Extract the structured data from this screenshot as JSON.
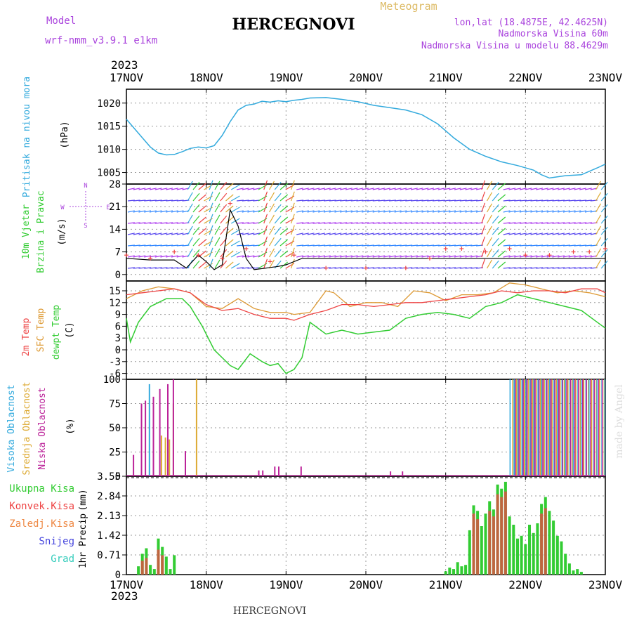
{
  "header": {
    "model_label": "Model",
    "model_name": "wrf-nmm_v3.9.1 e1km",
    "title": "HERCEGNOVI",
    "subtitle": "Meteogram",
    "lonlat": "lon,lat (18.4875E, 42.4625N)",
    "elevation": "Nadmorska Visina 60m",
    "model_elevation": "Nadmorska Visina u modelu 88.4629m",
    "watermark": "made by Angel",
    "footer_title": "HERCEGNOVI"
  },
  "time_axis": {
    "year": "2023",
    "ticks": [
      "17NOV",
      "18NOV",
      "19NOV",
      "20NOV",
      "21NOV",
      "22NOV",
      "23NOV"
    ]
  },
  "colors": {
    "pressure": "#33aadd",
    "temp2m": "#ee4444",
    "sfc_temp": "#dd9933",
    "dewpoint": "#33cc33",
    "high_cloud": "#33aadd",
    "mid_cloud": "#ddaa33",
    "low_cloud": "#bb2299",
    "total_precip": "#33cc33",
    "conv_precip": "#ee4444",
    "snow": "#4444dd",
    "wind_label": "#33cc33",
    "wind_speed_line": "#000000",
    "gust": "#ee4444"
  },
  "chart_data": [
    {
      "type": "line",
      "panel": "pressure",
      "ylabel_lines": [
        "Pritisak na nivou mora"
      ],
      "unit": "(hPa)",
      "yticks": [
        "1020",
        "1015",
        "1010",
        "1005"
      ],
      "ylim": [
        1002.5,
        1023
      ],
      "x_unit": "days since 17NOV 00UTC",
      "series": [
        {
          "x": [
            0,
            0.1,
            0.2,
            0.3,
            0.4,
            0.5,
            0.6,
            0.7,
            0.8,
            0.9,
            1.0,
            1.1,
            1.2,
            1.3,
            1.4,
            1.5,
            1.6,
            1.7,
            1.8,
            1.9,
            2.0,
            2.1,
            2.2,
            2.3,
            2.5,
            2.7,
            2.9,
            3.1,
            3.3,
            3.5,
            3.7,
            3.9,
            4.1,
            4.3,
            4.5,
            4.7,
            4.9,
            5.1,
            5.2,
            5.3,
            5.5,
            5.7,
            5.9,
            6.0
          ],
          "values": [
            1016.5,
            1014.5,
            1012.5,
            1010.5,
            1009.2,
            1008.8,
            1008.9,
            1009.5,
            1010.2,
            1010.5,
            1010.3,
            1010.8,
            1013.0,
            1016.0,
            1018.5,
            1019.5,
            1019.8,
            1020.4,
            1020.2,
            1020.5,
            1020.3,
            1020.6,
            1020.8,
            1021.1,
            1021.2,
            1020.8,
            1020.3,
            1019.5,
            1019.0,
            1018.5,
            1017.5,
            1015.5,
            1012.5,
            1010.0,
            1008.5,
            1007.3,
            1006.5,
            1005.5,
            1004.5,
            1003.8,
            1004.3,
            1004.5,
            1006.0,
            1006.8
          ]
        }
      ]
    },
    {
      "type": "line",
      "panel": "wind",
      "ylabel_lines": [
        "10m Vjetar",
        "Brzina i Pravac"
      ],
      "unit": "(m/s)",
      "compass": [
        "N",
        "S",
        "E",
        "W"
      ],
      "yticks": [
        "28",
        "21",
        "14",
        "7",
        "0"
      ],
      "ylim": [
        -2,
        28
      ],
      "series": [
        {
          "name": "speed",
          "x": [
            0,
            0.3,
            0.6,
            0.75,
            0.9,
            1.0,
            1.1,
            1.2,
            1.3,
            1.4,
            1.5,
            1.6,
            1.75,
            1.9,
            2.0,
            2.2,
            2.5,
            2.8,
            3.0,
            3.3,
            3.6,
            3.8,
            4.0,
            4.2,
            4.4,
            4.6,
            4.8,
            5.0,
            5.2,
            5.4,
            5.6,
            5.8,
            6.0
          ],
          "values": [
            5,
            4.5,
            4.5,
            2,
            6,
            4,
            1.5,
            3,
            20,
            15,
            5,
            1.5,
            2,
            2.5,
            3,
            5,
            5,
            5,
            5,
            5,
            5,
            5,
            5,
            5,
            5,
            5,
            5,
            5,
            5,
            5,
            5,
            5,
            5
          ]
        },
        {
          "name": "gust",
          "x": [
            0,
            0.3,
            0.6,
            0.9,
            1.2,
            1.3,
            1.5,
            1.8,
            2.1,
            2.5,
            3.0,
            3.5,
            3.8,
            4.0,
            4.2,
            4.5,
            4.8,
            5.0,
            5.3,
            5.6,
            5.8,
            6.0
          ],
          "values": [
            6,
            5,
            7,
            6,
            5,
            22,
            8,
            4,
            6,
            2,
            2,
            2,
            5,
            8,
            8,
            7,
            8,
            6,
            6,
            7,
            7,
            8
          ]
        }
      ]
    },
    {
      "type": "line",
      "panel": "temperature",
      "ylabel_lines": [
        "2m Temp",
        "SFC Temp",
        "dewpt Temp"
      ],
      "unit": "(C)",
      "yticks": [
        "15",
        "12",
        "9",
        "6",
        "3",
        "0",
        "-3",
        "-6"
      ],
      "ylim": [
        -7.5,
        17.5
      ],
      "series": [
        {
          "name": "2m Temp",
          "x": [
            0,
            0.2,
            0.4,
            0.6,
            0.8,
            1.0,
            1.2,
            1.4,
            1.6,
            1.8,
            2.0,
            2.1,
            2.3,
            2.5,
            2.7,
            2.9,
            3.1,
            3.3,
            3.5,
            3.7,
            3.9,
            4.1,
            4.3,
            4.5,
            4.7,
            4.9,
            5.1,
            5.3,
            5.5,
            5.7,
            5.9,
            6.0
          ],
          "values": [
            14,
            14.5,
            15,
            15.5,
            14.5,
            11.5,
            10,
            10.5,
            9,
            8,
            8,
            7.5,
            9,
            10,
            11.5,
            11.5,
            11,
            11.5,
            12,
            12,
            12.5,
            13,
            13.5,
            14,
            15,
            14.5,
            15,
            15,
            14.5,
            15.5,
            15.5,
            14.5
          ]
        },
        {
          "name": "SFC Temp",
          "x": [
            0,
            0.2,
            0.4,
            0.6,
            0.8,
            1.0,
            1.2,
            1.4,
            1.6,
            1.8,
            2.0,
            2.1,
            2.3,
            2.5,
            2.6,
            2.8,
            3.0,
            3.2,
            3.4,
            3.6,
            3.8,
            4.0,
            4.2,
            4.4,
            4.6,
            4.8,
            5.0,
            5.2,
            5.4,
            5.6,
            5.8,
            6.0
          ],
          "values": [
            13,
            15,
            16,
            15.5,
            14.5,
            11,
            10.5,
            13,
            10.5,
            9.5,
            9.5,
            9,
            9.5,
            15,
            14.5,
            11,
            12,
            12,
            11,
            15,
            14.5,
            12.5,
            14,
            14,
            14.5,
            17,
            16.5,
            15.5,
            14.5,
            15,
            14.5,
            13.5
          ]
        },
        {
          "name": "dewpt Temp",
          "x": [
            0,
            0.05,
            0.15,
            0.3,
            0.5,
            0.7,
            0.8,
            0.95,
            1.1,
            1.3,
            1.4,
            1.55,
            1.7,
            1.8,
            1.9,
            2.0,
            2.1,
            2.2,
            2.3,
            2.5,
            2.7,
            2.9,
            3.1,
            3.3,
            3.5,
            3.7,
            3.9,
            4.1,
            4.3,
            4.5,
            4.7,
            4.9,
            5.1,
            5.3,
            5.5,
            5.7,
            5.9,
            6.0
          ],
          "values": [
            8,
            2,
            7,
            11,
            13,
            13,
            11,
            6,
            0,
            -4,
            -5,
            -1,
            -3,
            -4,
            -3.5,
            -6,
            -5,
            -2,
            7,
            4,
            5,
            4,
            4.5,
            5,
            8,
            9,
            9.5,
            9,
            8,
            11,
            12,
            14,
            13,
            12,
            11,
            10,
            7,
            5.5
          ]
        }
      ]
    },
    {
      "type": "bar",
      "panel": "cloud",
      "ylabel_lines": [
        "Visoka Oblacnost",
        "Srednja Oblacnost",
        "Niska Oblacnost"
      ],
      "unit": "(%)",
      "yticks": [
        "100",
        "75",
        "50",
        "25",
        "0"
      ],
      "ylim": [
        0,
        100
      ],
      "series": [
        {
          "name": "Visoka Oblacnost",
          "x": [
            0.28,
            4.85,
            4.95,
            5.05,
            5.15,
            5.25,
            5.35,
            5.45,
            5.55,
            5.65,
            5.75,
            5.85,
            5.95
          ],
          "values": [
            95,
            100,
            100,
            100,
            100,
            100,
            100,
            100,
            100,
            100,
            100,
            100,
            100
          ]
        },
        {
          "name": "Srednja Oblacnost",
          "x": [
            0.43,
            0.48,
            0.53,
            0.58,
            0.87,
            4.88,
            4.98,
            5.08,
            5.18,
            5.28,
            5.38,
            5.48,
            5.58,
            5.68,
            5.78,
            5.88,
            5.98
          ],
          "values": [
            42,
            40,
            38,
            75,
            100,
            100,
            100,
            100,
            100,
            100,
            100,
            100,
            100,
            100,
            100,
            100,
            100
          ]
        },
        {
          "name": "Niska Oblacnost",
          "x": [
            0.08,
            0.18,
            0.23,
            0.33,
            0.41,
            0.51,
            0.58,
            0.73,
            1.65,
            1.7,
            1.85,
            1.9,
            2.18,
            3.3,
            3.45,
            4.91,
            5.01,
            5.11,
            5.21,
            5.31,
            5.41,
            5.51,
            5.61,
            5.71,
            5.81,
            5.91
          ],
          "values": [
            22,
            75,
            78,
            82,
            90,
            95,
            100,
            26,
            6,
            6,
            10,
            10,
            10,
            5,
            5,
            100,
            100,
            100,
            100,
            100,
            100,
            100,
            100,
            100,
            100,
            100
          ]
        }
      ]
    },
    {
      "type": "bar",
      "panel": "precipitation",
      "ylabel_lines": [
        "1hr Precip"
      ],
      "unit": "(mm)",
      "legend": [
        "Ukupna Kisa",
        "Konvek.Kisa",
        "Zaledj.Kisa",
        "Snijeg",
        "Grad"
      ],
      "yticks": [
        "3.55",
        "2.84",
        "2.13",
        "1.42",
        "0.71",
        "0"
      ],
      "ylim": [
        0,
        3.55
      ],
      "series": [
        {
          "name": "Ukupna Kisa",
          "x": [
            0.15,
            0.2,
            0.25,
            0.3,
            0.35,
            0.4,
            0.45,
            0.5,
            0.55,
            0.6,
            4.0,
            4.05,
            4.1,
            4.15,
            4.2,
            4.25,
            4.3,
            4.35,
            4.4,
            4.45,
            4.5,
            4.55,
            4.6,
            4.65,
            4.7,
            4.75,
            4.8,
            4.85,
            4.9,
            4.95,
            5.0,
            5.05,
            5.1,
            5.15,
            5.2,
            5.25,
            5.3,
            5.35,
            5.4,
            5.45,
            5.5,
            5.55,
            5.6,
            5.65,
            5.7
          ],
          "values": [
            0.3,
            0.75,
            0.95,
            0.35,
            0.2,
            1.3,
            1.0,
            0.65,
            0.2,
            0.7,
            0.12,
            0.25,
            0.2,
            0.45,
            0.3,
            0.35,
            1.6,
            2.5,
            2.3,
            1.75,
            2.2,
            2.65,
            2.35,
            3.25,
            3.1,
            3.35,
            2.1,
            1.8,
            1.3,
            1.4,
            1.1,
            1.8,
            1.5,
            1.85,
            2.55,
            2.8,
            2.3,
            1.95,
            1.4,
            1.2,
            0.75,
            0.4,
            0.15,
            0.2,
            0.1
          ]
        },
        {
          "name": "Konvek.Kisa",
          "x": [
            0.2,
            0.25,
            0.4,
            0.45,
            4.35,
            4.4,
            4.55,
            4.6,
            4.65,
            4.7,
            4.75,
            5.2,
            5.25
          ],
          "values": [
            0.5,
            0.6,
            0.9,
            0.7,
            2.2,
            2.0,
            2.3,
            2.1,
            2.9,
            2.8,
            3.0,
            2.2,
            2.4
          ]
        }
      ]
    }
  ]
}
